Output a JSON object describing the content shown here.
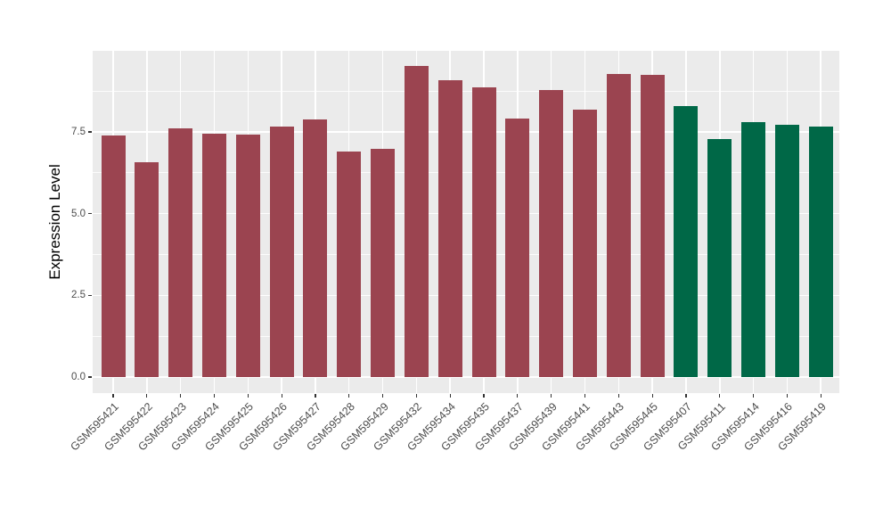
{
  "chart_data": {
    "type": "bar",
    "title": "",
    "xlabel": "",
    "ylabel": "Expression Level",
    "ylim": [
      0,
      10
    ],
    "ytick_values": [
      0,
      2.5,
      5,
      7.5
    ],
    "ytick_labels": [
      "0.0",
      "2.5",
      "5.0",
      "7.5"
    ],
    "minor_gridlines": [
      1.25,
      3.75,
      6.25,
      8.75
    ],
    "grid": "major and minor horizontal white lines, vertical white line at each category, grey panel",
    "legend_position": "none",
    "categories": [
      "GSM595421",
      "GSM595422",
      "GSM595423",
      "GSM595424",
      "GSM595425",
      "GSM595426",
      "GSM595427",
      "GSM595428",
      "GSM595429",
      "GSM595432",
      "GSM595434",
      "GSM595435",
      "GSM595437",
      "GSM595439",
      "GSM595441",
      "GSM595443",
      "GSM595445",
      "GSM595407",
      "GSM595411",
      "GSM595414",
      "GSM595416",
      "GSM595419"
    ],
    "values": [
      7.38,
      6.58,
      7.6,
      7.45,
      7.43,
      7.65,
      7.87,
      6.9,
      6.97,
      9.52,
      9.08,
      8.87,
      7.92,
      8.78,
      8.19,
      9.28,
      9.25,
      8.29,
      7.28,
      7.79,
      7.72,
      7.65
    ],
    "bar_colors": [
      "#9B4450",
      "#9B4450",
      "#9B4450",
      "#9B4450",
      "#9B4450",
      "#9B4450",
      "#9B4450",
      "#9B4450",
      "#9B4450",
      "#9B4450",
      "#9B4450",
      "#9B4450",
      "#9B4450",
      "#9B4450",
      "#9B4450",
      "#9B4450",
      "#9B4450",
      "#006847",
      "#006847",
      "#006847",
      "#006847",
      "#006847"
    ]
  },
  "style": {
    "background": "#FFFFFF",
    "panel_bg": "#EBEBEB",
    "grid_color": "#FFFFFF",
    "bar_color_group1": "#9B4450",
    "bar_color_group2": "#006847",
    "axis_text_color": "#4D4D4D",
    "axis_title_color": "#000000",
    "tick_mark_color": "#333333"
  }
}
